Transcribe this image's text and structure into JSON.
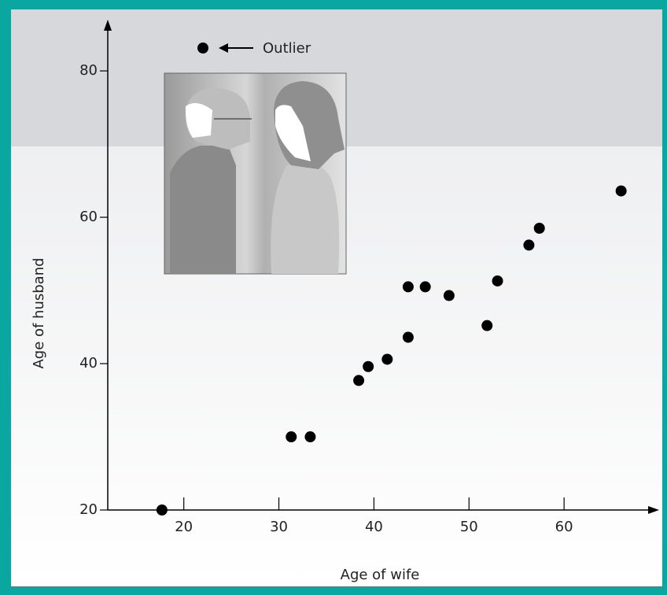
{
  "chart_data": {
    "type": "scatter",
    "x_label": "Age of wife",
    "y_label": "Age of husband",
    "annotation": "Outlier",
    "color": "#000000",
    "x": [
      17.7,
      31.3,
      33.3,
      38.4,
      39.4,
      41.4,
      43.6,
      43.6,
      45.4,
      47.9,
      51.9,
      53.0,
      56.3,
      57.4,
      66.0
    ],
    "values": [
      20,
      30,
      30,
      37.7,
      39.6,
      40.6,
      43.6,
      50.5,
      50.5,
      49.3,
      45.2,
      51.3,
      56.2,
      58.5,
      63.6
    ],
    "xlim": [
      12,
      70
    ],
    "ylim": [
      20,
      87
    ],
    "xticks": [
      20,
      30,
      40,
      50,
      60
    ],
    "yticks": [
      20,
      40,
      60,
      80
    ]
  }
}
